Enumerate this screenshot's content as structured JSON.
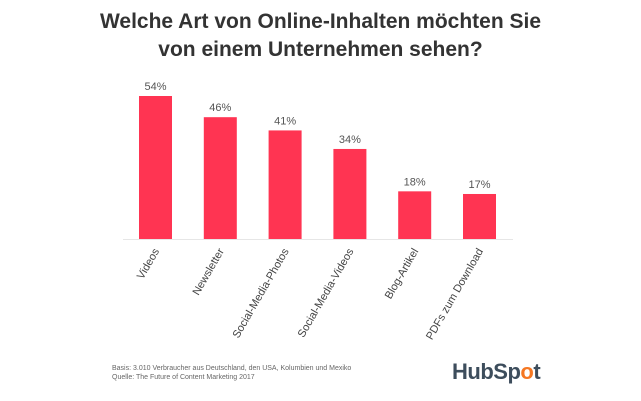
{
  "title_line1": "Welche Art von Online-Inhalten möchten Sie",
  "title_line2": "von einem Unternehmen sehen?",
  "chart_data": {
    "type": "bar",
    "title": "Welche Art von Online-Inhalten möchten Sie von einem Unternehmen sehen?",
    "categories": [
      "Videos",
      "Newsletter",
      "Social-Media-Photos",
      "Social-Media-Videos",
      "Blog-Artikel",
      "PDFs zum Download"
    ],
    "values": [
      54,
      46,
      41,
      34,
      18,
      17
    ],
    "data_labels": [
      "54%",
      "46%",
      "41%",
      "34%",
      "18%",
      "17%"
    ],
    "unit": "%",
    "ylim": [
      0,
      54
    ],
    "grid": false,
    "bar_color": "#ff3452"
  },
  "footnote_basis": "Basis: 3.010 Verbraucher aus Deutschland, den USA, Kolumbien und Mexiko",
  "footnote_source": "Quelle: The Future of Content Marketing 2017",
  "logo": "HubSpot"
}
